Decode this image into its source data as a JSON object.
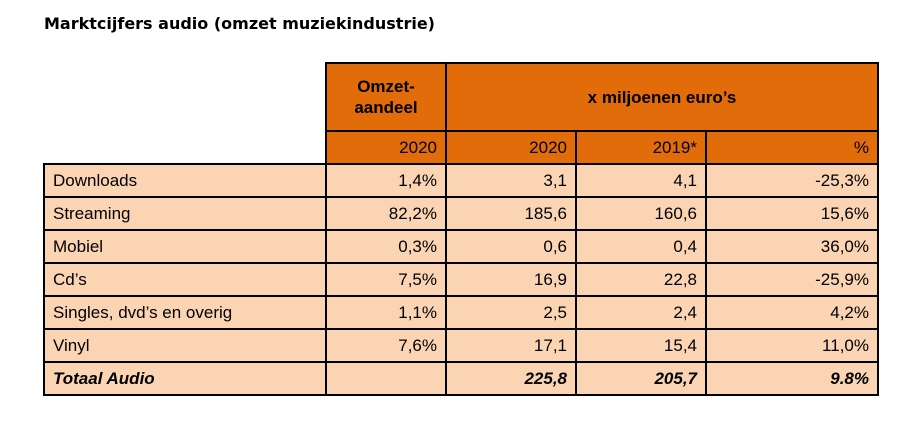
{
  "title": "Marktcijfers audio (omzet muziekindustrie)",
  "colors": {
    "header": "#E36C0A",
    "cells": "#FBD4B4"
  },
  "header": {
    "share_line1": "Omzet-",
    "share_line2": "aandeel",
    "millions": "x miljoenen euro’s",
    "sub": [
      "2020",
      "2020",
      "2019*",
      "%"
    ]
  },
  "rows": [
    {
      "label": "Downloads",
      "share": "1,4%",
      "y2020": "3,1",
      "y2019": "4,1",
      "pct": "-25,3%"
    },
    {
      "label": "Streaming",
      "share": "82,2%",
      "y2020": "185,6",
      "y2019": "160,6",
      "pct": "15,6%"
    },
    {
      "label": "Mobiel",
      "share": "0,3%",
      "y2020": "0,6",
      "y2019": "0,4",
      "pct": "36,0%"
    },
    {
      "label": "Cd’s",
      "share": "7,5%",
      "y2020": "16,9",
      "y2019": "22,8",
      "pct": "-25,9%"
    },
    {
      "label": "Singles, dvd’s en overig",
      "share": "1,1%",
      "y2020": "2,5",
      "y2019": "2,4",
      "pct": "4,2%"
    },
    {
      "label": "Vinyl",
      "share": "7,6%",
      "y2020": "17,1",
      "y2019": "15,4",
      "pct": "11,0%"
    }
  ],
  "total": {
    "label": "Totaal Audio",
    "share": "",
    "y2020": "225,8",
    "y2019": "205,7",
    "pct": "9.8%"
  }
}
